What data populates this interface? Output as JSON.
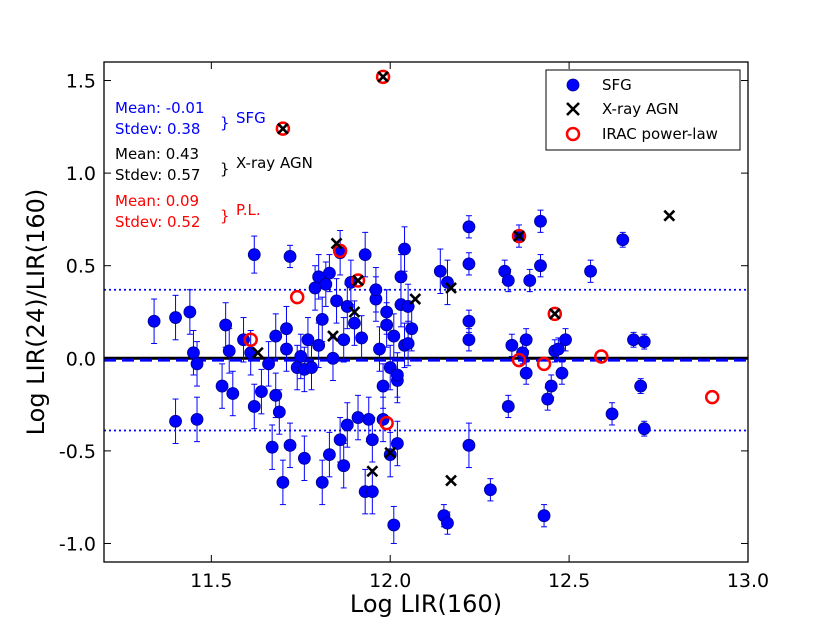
{
  "chart_data": {
    "type": "scatter",
    "xlabel": "Log LIR(160)",
    "ylabel": "Log LIR(24)/LIR(160)",
    "xlim": [
      11.2,
      13.0
    ],
    "ylim": [
      -1.1,
      1.6
    ],
    "xticks": [
      11.5,
      12.0,
      12.5,
      13.0
    ],
    "xtick_labels": [
      "11.5",
      "12.0",
      "12.5",
      "13.0"
    ],
    "yticks": [
      1.5,
      1.0,
      0.5,
      0.0,
      -0.5,
      -1.0
    ],
    "ytick_labels": [
      "1.5",
      "1.0",
      "0.5",
      "0.0",
      "-0.5",
      "-1.0"
    ],
    "reference_lines": [
      {
        "kind": "solid",
        "y": 0.0,
        "color": "#000000"
      },
      {
        "kind": "dashed",
        "y": -0.01,
        "color": "#0000ff"
      },
      {
        "kind": "dotted",
        "y": 0.37,
        "color": "#0000ff"
      },
      {
        "kind": "dotted",
        "y": -0.39,
        "color": "#0000ff"
      }
    ],
    "annotations": [
      {
        "lines": [
          "Mean: -0.01",
          "Stdev: 0.38"
        ],
        "label": "SFG",
        "color": "#0000ff"
      },
      {
        "lines": [
          "Mean: 0.43",
          "Stdev: 0.57"
        ],
        "label": "X-ray AGN",
        "color": "#000000"
      },
      {
        "lines": [
          "Mean: 0.09",
          "Stdev: 0.52"
        ],
        "label": "P.L.",
        "color": "#ff0000"
      }
    ],
    "legend": {
      "position": "top-right",
      "entries": [
        {
          "label": "SFG",
          "marker": "filled-circle",
          "color": "#0000ff"
        },
        {
          "label": "X-ray AGN",
          "marker": "x",
          "color": "#000000"
        },
        {
          "label": "IRAC power-law",
          "marker": "open-circle",
          "color": "#ff0000"
        }
      ]
    },
    "series": [
      {
        "name": "SFG",
        "color": "#0000ff",
        "points": [
          [
            11.34,
            0.2,
            0.12
          ],
          [
            11.4,
            0.22,
            0.12
          ],
          [
            11.44,
            0.25,
            0.12
          ],
          [
            11.45,
            0.03,
            0.12
          ],
          [
            11.46,
            -0.03,
            0.12
          ],
          [
            11.4,
            -0.34,
            0.12
          ],
          [
            11.46,
            -0.33,
            0.12
          ],
          [
            11.53,
            -0.15,
            0.12
          ],
          [
            11.54,
            0.18,
            0.12
          ],
          [
            11.55,
            0.04,
            0.12
          ],
          [
            11.56,
            -0.19,
            0.12
          ],
          [
            11.59,
            0.1,
            0.12
          ],
          [
            11.61,
            0.03,
            0.12
          ],
          [
            11.62,
            -0.26,
            0.12
          ],
          [
            11.62,
            0.56,
            0.1
          ],
          [
            11.64,
            -0.18,
            0.12
          ],
          [
            11.66,
            -0.03,
            0.12
          ],
          [
            11.67,
            -0.48,
            0.12
          ],
          [
            11.68,
            0.12,
            0.12
          ],
          [
            11.68,
            -0.2,
            0.12
          ],
          [
            11.69,
            -0.29,
            0.12
          ],
          [
            11.7,
            -0.67,
            0.12
          ],
          [
            11.71,
            0.16,
            0.12
          ],
          [
            11.71,
            0.05,
            0.12
          ],
          [
            11.72,
            -0.47,
            0.12
          ],
          [
            11.72,
            0.55,
            0.06
          ],
          [
            11.74,
            -0.05,
            0.12
          ],
          [
            11.75,
            0.01,
            0.12
          ],
          [
            11.76,
            -0.54,
            0.12
          ],
          [
            11.76,
            -0.06,
            0.12
          ],
          [
            11.77,
            0.1,
            0.12
          ],
          [
            11.78,
            -0.05,
            0.12
          ],
          [
            11.79,
            0.38,
            0.12
          ],
          [
            11.8,
            0.44,
            0.12
          ],
          [
            11.8,
            0.07,
            0.12
          ],
          [
            11.81,
            -0.67,
            0.12
          ],
          [
            11.81,
            0.21,
            0.12
          ],
          [
            11.82,
            0.4,
            0.12
          ],
          [
            11.83,
            0.46,
            0.1
          ],
          [
            11.83,
            -0.52,
            0.12
          ],
          [
            11.84,
            0.0,
            0.12
          ],
          [
            11.85,
            0.31,
            0.12
          ],
          [
            11.86,
            0.57,
            0.12
          ],
          [
            11.86,
            -0.44,
            0.12
          ],
          [
            11.87,
            -0.58,
            0.12
          ],
          [
            11.87,
            0.1,
            0.12
          ],
          [
            11.88,
            -0.36,
            0.12
          ],
          [
            11.88,
            0.28,
            0.12
          ],
          [
            11.89,
            0.41,
            0.12
          ],
          [
            11.9,
            0.19,
            0.12
          ],
          [
            11.91,
            -0.32,
            0.12
          ],
          [
            11.92,
            0.11,
            0.12
          ],
          [
            11.93,
            0.56,
            0.12
          ],
          [
            11.93,
            -0.72,
            0.12
          ],
          [
            11.94,
            -0.33,
            0.12
          ],
          [
            11.95,
            -0.72,
            0.12
          ],
          [
            11.95,
            -0.44,
            0.12
          ],
          [
            11.96,
            0.32,
            0.12
          ],
          [
            11.96,
            0.37,
            0.12
          ],
          [
            11.97,
            0.05,
            0.12
          ],
          [
            11.98,
            -0.33,
            0.12
          ],
          [
            11.98,
            -0.15,
            0.12
          ],
          [
            11.99,
            0.25,
            0.12
          ],
          [
            11.99,
            0.18,
            0.12
          ],
          [
            12.0,
            -0.05,
            0.12
          ],
          [
            12.0,
            -0.52,
            0.12
          ],
          [
            12.01,
            0.12,
            0.12
          ],
          [
            12.02,
            -0.12,
            0.12
          ],
          [
            12.02,
            -0.46,
            0.12
          ],
          [
            12.02,
            -0.09,
            0.12
          ],
          [
            12.03,
            0.44,
            0.12
          ],
          [
            12.03,
            0.29,
            0.12
          ],
          [
            12.04,
            0.59,
            0.12
          ],
          [
            12.04,
            0.07,
            0.12
          ],
          [
            12.05,
            0.28,
            0.12
          ],
          [
            12.05,
            0.08,
            0.12
          ],
          [
            12.06,
            0.16,
            0.12
          ],
          [
            12.01,
            -0.9,
            0.1
          ],
          [
            12.14,
            0.47,
            0.12
          ],
          [
            12.15,
            -0.85,
            0.06
          ],
          [
            12.16,
            -0.89,
            0.06
          ],
          [
            12.16,
            0.41,
            0.12
          ],
          [
            12.22,
            0.71,
            0.06
          ],
          [
            12.22,
            0.51,
            0.06
          ],
          [
            12.22,
            0.2,
            0.06
          ],
          [
            12.22,
            0.1,
            0.06
          ],
          [
            12.22,
            -0.47,
            0.12
          ],
          [
            12.28,
            -0.71,
            0.06
          ],
          [
            12.32,
            0.47,
            0.06
          ],
          [
            12.33,
            0.42,
            0.06
          ],
          [
            12.34,
            0.07,
            0.06
          ],
          [
            12.33,
            -0.26,
            0.06
          ],
          [
            12.36,
            0.66,
            0.06
          ],
          [
            12.37,
            0.03,
            0.06
          ],
          [
            12.38,
            -0.08,
            0.06
          ],
          [
            12.38,
            0.1,
            0.06
          ],
          [
            12.39,
            0.42,
            0.06
          ],
          [
            12.42,
            0.5,
            0.06
          ],
          [
            12.42,
            0.74,
            0.06
          ],
          [
            12.43,
            -0.85,
            0.06
          ],
          [
            12.44,
            -0.22,
            0.06
          ],
          [
            12.45,
            -0.15,
            0.06
          ],
          [
            12.46,
            0.04,
            0.06
          ],
          [
            12.47,
            0.05,
            0.06
          ],
          [
            12.48,
            -0.08,
            0.06
          ],
          [
            12.49,
            0.1,
            0.06
          ],
          [
            12.56,
            0.47,
            0.06
          ],
          [
            12.62,
            -0.3,
            0.06
          ],
          [
            12.65,
            0.64,
            0.04
          ],
          [
            12.68,
            0.1,
            0.04
          ],
          [
            12.71,
            0.09,
            0.04
          ],
          [
            12.7,
            -0.15,
            0.04
          ],
          [
            12.71,
            -0.38,
            0.04
          ]
        ]
      },
      {
        "name": "X-ray AGN",
        "color": "#000000",
        "points": [
          [
            11.63,
            0.03
          ],
          [
            11.7,
            1.24
          ],
          [
            11.84,
            0.12
          ],
          [
            11.85,
            0.62
          ],
          [
            11.9,
            0.25
          ],
          [
            11.91,
            0.42
          ],
          [
            11.95,
            -0.61
          ],
          [
            11.98,
            1.52
          ],
          [
            12.0,
            -0.51
          ],
          [
            12.07,
            0.32
          ],
          [
            12.17,
            0.38
          ],
          [
            12.17,
            -0.66
          ],
          [
            12.36,
            0.66
          ],
          [
            12.46,
            0.24
          ],
          [
            12.78,
            0.77
          ]
        ]
      },
      {
        "name": "IRAC power-law",
        "color": "#ff0000",
        "points": [
          [
            11.61,
            0.1
          ],
          [
            11.7,
            1.24
          ],
          [
            11.74,
            0.33
          ],
          [
            11.86,
            0.58
          ],
          [
            11.91,
            0.42
          ],
          [
            11.98,
            1.52
          ],
          [
            11.99,
            -0.35
          ],
          [
            12.36,
            -0.01
          ],
          [
            12.36,
            0.66
          ],
          [
            12.43,
            -0.03
          ],
          [
            12.46,
            0.24
          ],
          [
            12.59,
            0.01
          ],
          [
            12.9,
            -0.21
          ]
        ]
      }
    ]
  }
}
